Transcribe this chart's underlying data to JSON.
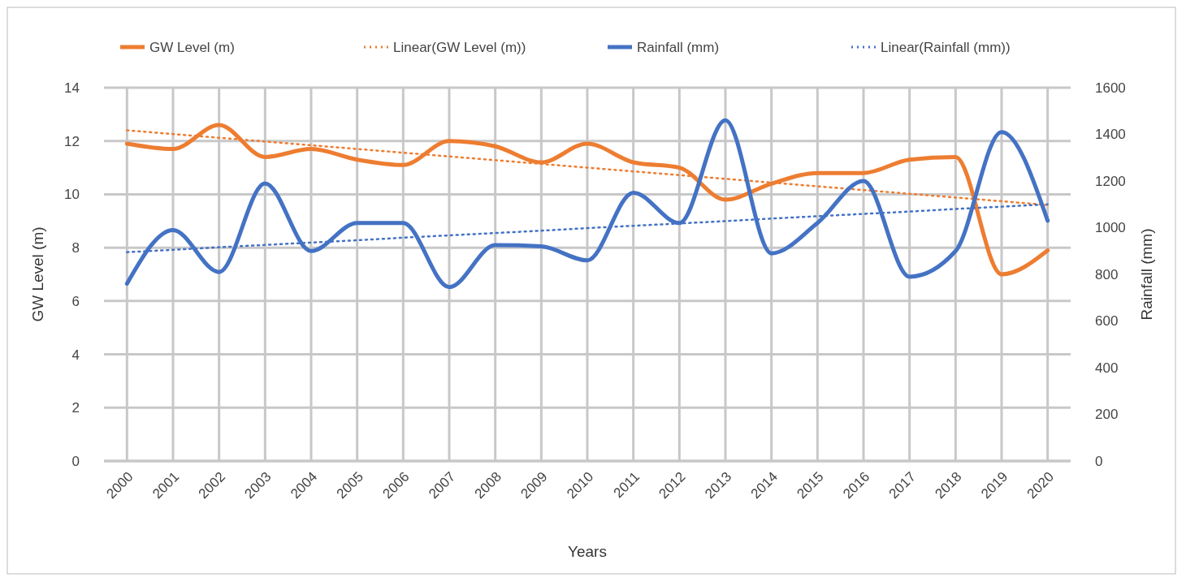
{
  "chart_data": {
    "type": "line",
    "xlabel": "Years",
    "ylabel": "GW Level (m)",
    "y2label": "Rainfall (mm)",
    "x": [
      2000,
      2001,
      2002,
      2003,
      2004,
      2005,
      2006,
      2007,
      2008,
      2009,
      2010,
      2011,
      2012,
      2013,
      2014,
      2015,
      2016,
      2017,
      2018,
      2019,
      2020
    ],
    "xlim": [
      1999.5,
      2020.5
    ],
    "xticks": [
      2000,
      2001,
      2002,
      2003,
      2004,
      2005,
      2006,
      2007,
      2008,
      2009,
      2010,
      2011,
      2012,
      2013,
      2014,
      2015,
      2016,
      2017,
      2018,
      2019,
      2020
    ],
    "ylim": [
      0,
      14
    ],
    "yticks": [
      0,
      2,
      4,
      6,
      8,
      10,
      12,
      14
    ],
    "y2lim": [
      0,
      1600
    ],
    "y2ticks": [
      0,
      200,
      400,
      600,
      800,
      1000,
      1200,
      1400,
      1600
    ],
    "grid": true,
    "legend": "top",
    "marker": "none",
    "series": [
      {
        "name": "GW Level (m)",
        "color": "#ed7d31",
        "line_style": "solid",
        "values": [
          11.9,
          11.7,
          12.6,
          11.4,
          11.7,
          11.3,
          11.1,
          12.0,
          11.8,
          11.2,
          11.9,
          11.2,
          11.0,
          9.8,
          10.4,
          10.8,
          10.8,
          11.3,
          11.4,
          7.0,
          7.9
        ]
      },
      {
        "name": "Linear(GW Level (m))",
        "color": "#ed7d31",
        "line_style": "dotted",
        "values": [
          12.4,
          12.26,
          12.12,
          11.98,
          11.84,
          11.7,
          11.56,
          11.42,
          11.28,
          11.14,
          11.0,
          10.86,
          10.72,
          10.58,
          10.44,
          10.3,
          10.16,
          10.02,
          9.88,
          9.74,
          9.6
        ]
      },
      {
        "name": "Rainfall (mm)",
        "color": "#4472c4",
        "line_style": "solid",
        "axis": "y2",
        "values": [
          760,
          990,
          810,
          1190,
          900,
          1020,
          1020,
          745,
          925,
          920,
          860,
          1150,
          1020,
          1460,
          890,
          1020,
          1200,
          790,
          900,
          1410,
          1030
        ]
      },
      {
        "name": "Linear(Rainfall (mm))",
        "color": "#4472c4",
        "line_style": "dotted",
        "axis": "y2",
        "values": [
          895,
          905,
          916,
          926,
          936,
          946,
          957,
          967,
          977,
          987,
          998,
          1008,
          1018,
          1028,
          1039,
          1049,
          1059,
          1069,
          1080,
          1090,
          1100
        ]
      }
    ]
  }
}
